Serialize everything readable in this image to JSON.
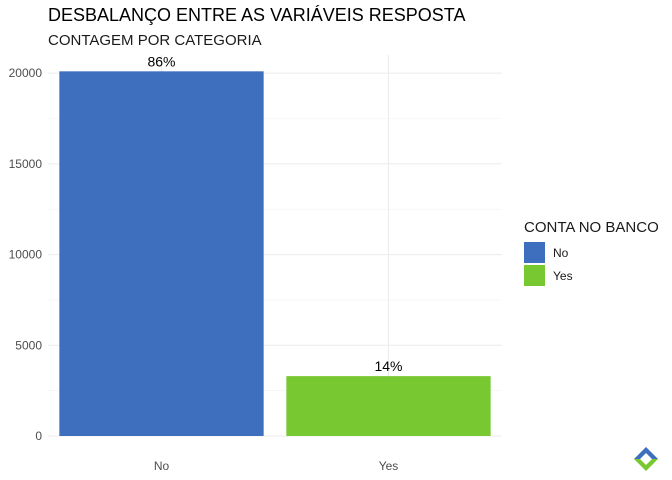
{
  "chart_data": {
    "type": "bar",
    "title": "DESBALANÇO ENTRE AS VARIÁVEIS RESPOSTA",
    "subtitle": "CONTAGEM POR CATEGORIA",
    "categories": [
      "No",
      "Yes"
    ],
    "values": [
      20100,
      3300
    ],
    "data_labels": [
      "86%",
      "14%"
    ],
    "colors": [
      "#3e6fbf",
      "#78c832"
    ],
    "ylim": [
      0,
      21000
    ],
    "yticks": [
      0,
      5000,
      10000,
      15000,
      20000
    ],
    "ytick_labels": [
      "0",
      "5000",
      "10000",
      "15000",
      "20000"
    ],
    "grid": true,
    "legend": {
      "title": "CONTA NO BANCO",
      "position": "right",
      "entries": [
        "No",
        "Yes"
      ]
    }
  }
}
